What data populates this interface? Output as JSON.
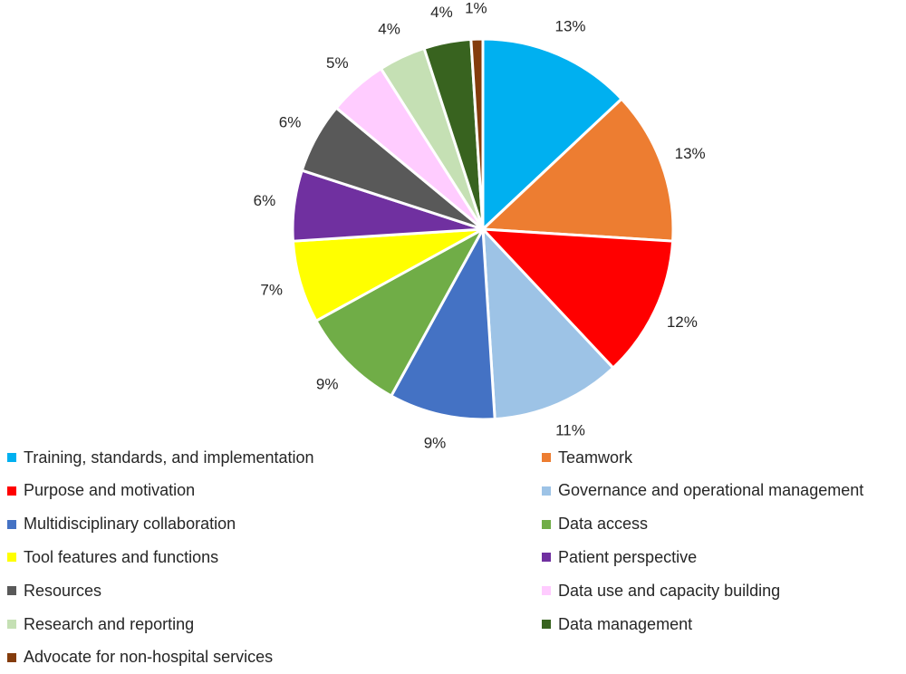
{
  "chart_data": {
    "type": "pie",
    "title": "",
    "legend_position": "bottom",
    "start_angle_deg": 0,
    "direction": "clockwise",
    "slices": [
      {
        "label": "Training, standards, and implementation",
        "value": 13,
        "display": "13%",
        "color": "#00B0F0"
      },
      {
        "label": "Teamwork",
        "value": 13,
        "display": "13%",
        "color": "#ED7D31"
      },
      {
        "label": "Purpose and motivation",
        "value": 12,
        "display": "12%",
        "color": "#FF0000"
      },
      {
        "label": "Governance and operational management",
        "value": 11,
        "display": "11%",
        "color": "#9DC3E6"
      },
      {
        "label": "Multidisciplinary collaboration",
        "value": 9,
        "display": "9%",
        "color": "#4472C4"
      },
      {
        "label": "Data access",
        "value": 9,
        "display": "9%",
        "color": "#70AD47"
      },
      {
        "label": "Tool features and functions",
        "value": 7,
        "display": "7%",
        "color": "#FFFF00"
      },
      {
        "label": "Patient perspective",
        "value": 6,
        "display": "6%",
        "color": "#7030A0"
      },
      {
        "label": "Resources",
        "value": 6,
        "display": "6%",
        "color": "#595959"
      },
      {
        "label": "Data use and capacity building",
        "value": 5,
        "display": "5%",
        "color": "#FFCCFF"
      },
      {
        "label": "Research and reporting",
        "value": 4,
        "display": "4%",
        "color": "#C5E0B4"
      },
      {
        "label": "Data management",
        "value": 4,
        "display": "4%",
        "color": "#38631F"
      },
      {
        "label": "Advocate for non-hospital services",
        "value": 1,
        "display": "1%",
        "color": "#843C0C"
      }
    ]
  }
}
